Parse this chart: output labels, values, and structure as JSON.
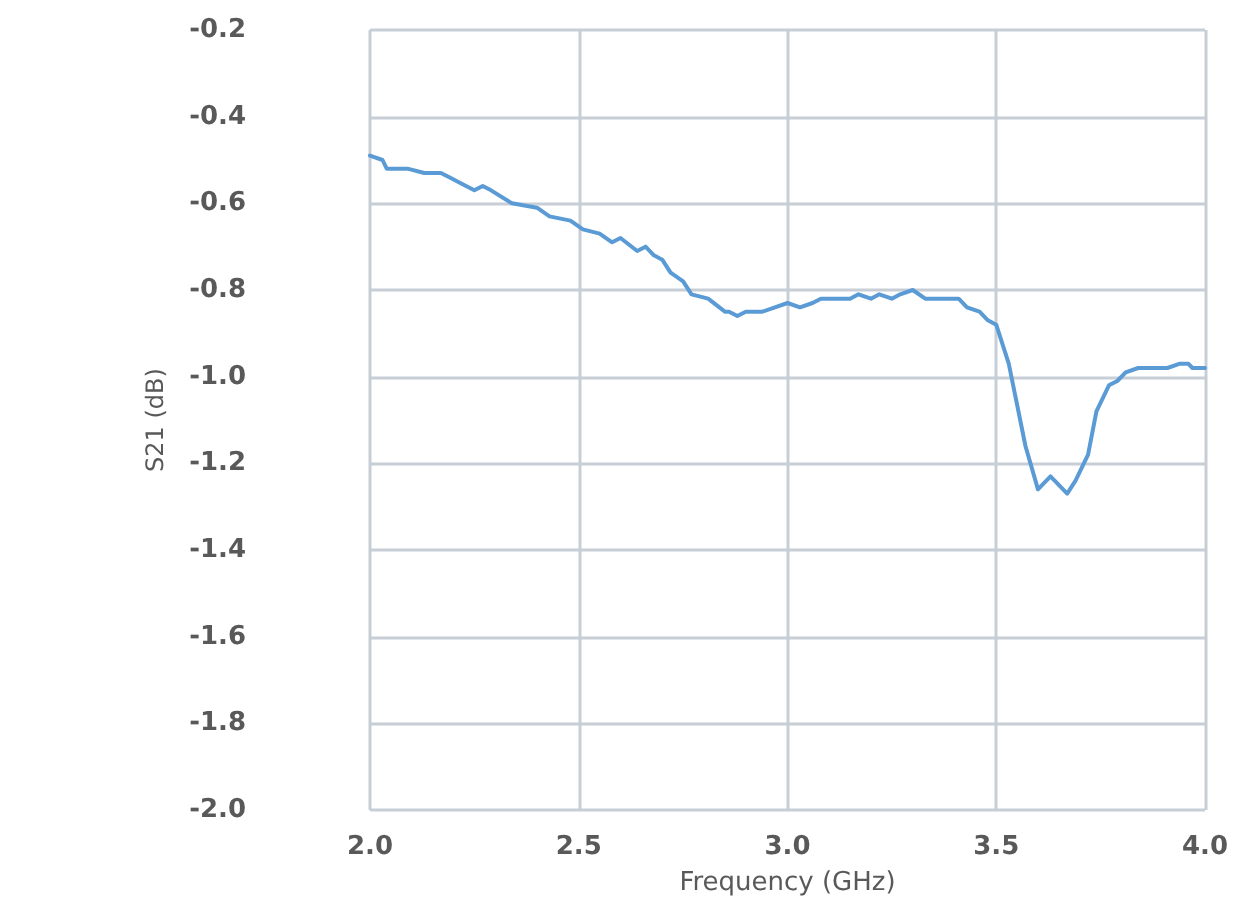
{
  "chart_data": {
    "type": "line",
    "xlabel": "Frequency (GHz)",
    "ylabel": "S21 (dB)",
    "xlim": [
      2.0,
      4.0
    ],
    "xticks": [
      {
        "value": 2,
        "label": "2.0"
      },
      {
        "value": 2.5,
        "label": "2.5"
      },
      {
        "value": 3,
        "label": "3.0"
      },
      {
        "value": 3.5,
        "label": "3.5"
      },
      {
        "value": 4,
        "label": "4.0"
      }
    ],
    "ylim": [
      -2.0,
      -0.2
    ],
    "yticks": [
      {
        "value": -2,
        "label": "-2.0"
      },
      {
        "value": -1.8,
        "label": "-1.8"
      },
      {
        "value": -1.6,
        "label": "-1.6"
      },
      {
        "value": -1.4,
        "label": "-1.4"
      },
      {
        "value": -1.2,
        "label": "-1.2"
      },
      {
        "value": -1,
        "label": "-1.0"
      },
      {
        "value": -0.8,
        "label": "-0.8"
      },
      {
        "value": -0.6,
        "label": "-0.6"
      },
      {
        "value": -0.4,
        "label": "-0.4"
      },
      {
        "value": -0.2,
        "label": "-0.2"
      }
    ],
    "grid": true,
    "marker": "none",
    "line_style": "solid",
    "x": [
      2.0,
      2.03,
      2.04,
      2.09,
      2.13,
      2.17,
      2.19,
      2.23,
      2.25,
      2.27,
      2.29,
      2.34,
      2.4,
      2.43,
      2.48,
      2.51,
      2.55,
      2.58,
      2.6,
      2.64,
      2.66,
      2.68,
      2.7,
      2.72,
      2.75,
      2.77,
      2.81,
      2.85,
      2.86,
      2.88,
      2.9,
      2.94,
      2.97,
      3.0,
      3.03,
      3.06,
      3.08,
      3.1,
      3.15,
      3.17,
      3.2,
      3.22,
      3.25,
      3.27,
      3.3,
      3.33,
      3.38,
      3.41,
      3.43,
      3.46,
      3.48,
      3.5,
      3.53,
      3.57,
      3.6,
      3.63,
      3.67,
      3.69,
      3.72,
      3.74,
      3.77,
      3.79,
      3.81,
      3.84,
      3.87,
      3.91,
      3.94,
      3.96,
      3.97,
      4.0
    ],
    "series": [
      {
        "color": "#5b9bd5",
        "values": [
          -0.49,
          -0.5,
          -0.52,
          -0.52,
          -0.53,
          -0.53,
          -0.54,
          -0.56,
          -0.57,
          -0.56,
          -0.57,
          -0.6,
          -0.61,
          -0.63,
          -0.64,
          -0.66,
          -0.67,
          -0.69,
          -0.68,
          -0.71,
          -0.7,
          -0.72,
          -0.73,
          -0.76,
          -0.78,
          -0.81,
          -0.82,
          -0.85,
          -0.85,
          -0.86,
          -0.85,
          -0.85,
          -0.84,
          -0.83,
          -0.84,
          -0.83,
          -0.82,
          -0.82,
          -0.82,
          -0.81,
          -0.82,
          -0.81,
          -0.82,
          -0.81,
          -0.8,
          -0.82,
          -0.82,
          -0.82,
          -0.84,
          -0.85,
          -0.87,
          -0.88,
          -0.97,
          -1.16,
          -1.26,
          -1.23,
          -1.27,
          -1.24,
          -1.18,
          -1.08,
          -1.02,
          -1.01,
          -0.99,
          -0.98,
          -0.98,
          -0.98,
          -0.97,
          -0.97,
          -0.98,
          -0.98
        ]
      }
    ]
  }
}
